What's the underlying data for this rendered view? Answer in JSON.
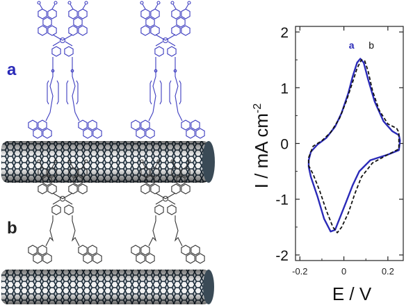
{
  "scheme": {
    "label_a": "a",
    "label_b": "b",
    "color_a": "#3b3bbf",
    "color_b": "#333333",
    "tube_color": "#1e2f3d"
  },
  "chart_data": {
    "type": "line",
    "xlabel": "E / V",
    "ylabel": "I / mA cm",
    "ylabel_sup": "-2",
    "xlim": [
      -0.22,
      0.27
    ],
    "ylim": [
      -2.1,
      2.1
    ],
    "xticks": [
      -0.2,
      0,
      0.2
    ],
    "xtick_labels": [
      "-0.2",
      "0",
      "0.2"
    ],
    "yticks": [
      -2,
      -1,
      0,
      1,
      2
    ],
    "ytick_labels": [
      "-2",
      "-1",
      "0",
      "1",
      "2"
    ],
    "grid": false,
    "series": [
      {
        "name": "a",
        "color": "#2a2ab8",
        "style": "solid",
        "x": [
          -0.16,
          -0.15,
          -0.12,
          -0.08,
          -0.04,
          -0.01,
          0.02,
          0.04,
          0.06,
          0.075,
          0.09,
          0.11,
          0.14,
          0.18,
          0.22,
          0.25,
          0.255,
          0.25,
          0.2,
          0.12,
          0.07,
          0.04,
          0.01,
          -0.02,
          -0.04,
          -0.06,
          -0.09,
          -0.12,
          -0.15,
          -0.16,
          -0.16
        ],
        "y": [
          -0.3,
          -0.15,
          -0.02,
          0.1,
          0.3,
          0.55,
          0.9,
          1.2,
          1.45,
          1.52,
          1.45,
          1.15,
          0.75,
          0.4,
          0.22,
          0.15,
          0.05,
          -0.12,
          -0.2,
          -0.3,
          -0.5,
          -0.75,
          -1.05,
          -1.35,
          -1.55,
          -1.58,
          -1.35,
          -0.95,
          -0.6,
          -0.42,
          -0.3
        ]
      },
      {
        "name": "b",
        "color": "#111111",
        "style": "dashed",
        "x": [
          -0.16,
          -0.14,
          -0.1,
          -0.06,
          -0.02,
          0.01,
          0.04,
          0.06,
          0.08,
          0.095,
          0.11,
          0.13,
          0.16,
          0.2,
          0.24,
          0.25,
          0.25,
          0.2,
          0.13,
          0.08,
          0.05,
          0.02,
          -0.01,
          -0.03,
          -0.05,
          -0.08,
          -0.11,
          -0.14,
          -0.16,
          -0.16
        ],
        "y": [
          -0.25,
          -0.05,
          0.05,
          0.2,
          0.45,
          0.75,
          1.1,
          1.35,
          1.5,
          1.48,
          1.3,
          0.95,
          0.6,
          0.35,
          0.27,
          0.2,
          -0.1,
          -0.2,
          -0.35,
          -0.6,
          -0.9,
          -1.25,
          -1.5,
          -1.6,
          -1.5,
          -1.2,
          -0.85,
          -0.55,
          -0.4,
          -0.25
        ]
      }
    ],
    "annotations": [
      {
        "text": "a",
        "x": 0.035,
        "y": 1.7,
        "color": "#2a2ab8"
      },
      {
        "text": "b",
        "x": 0.125,
        "y": 1.7,
        "color": "#111111"
      }
    ]
  }
}
